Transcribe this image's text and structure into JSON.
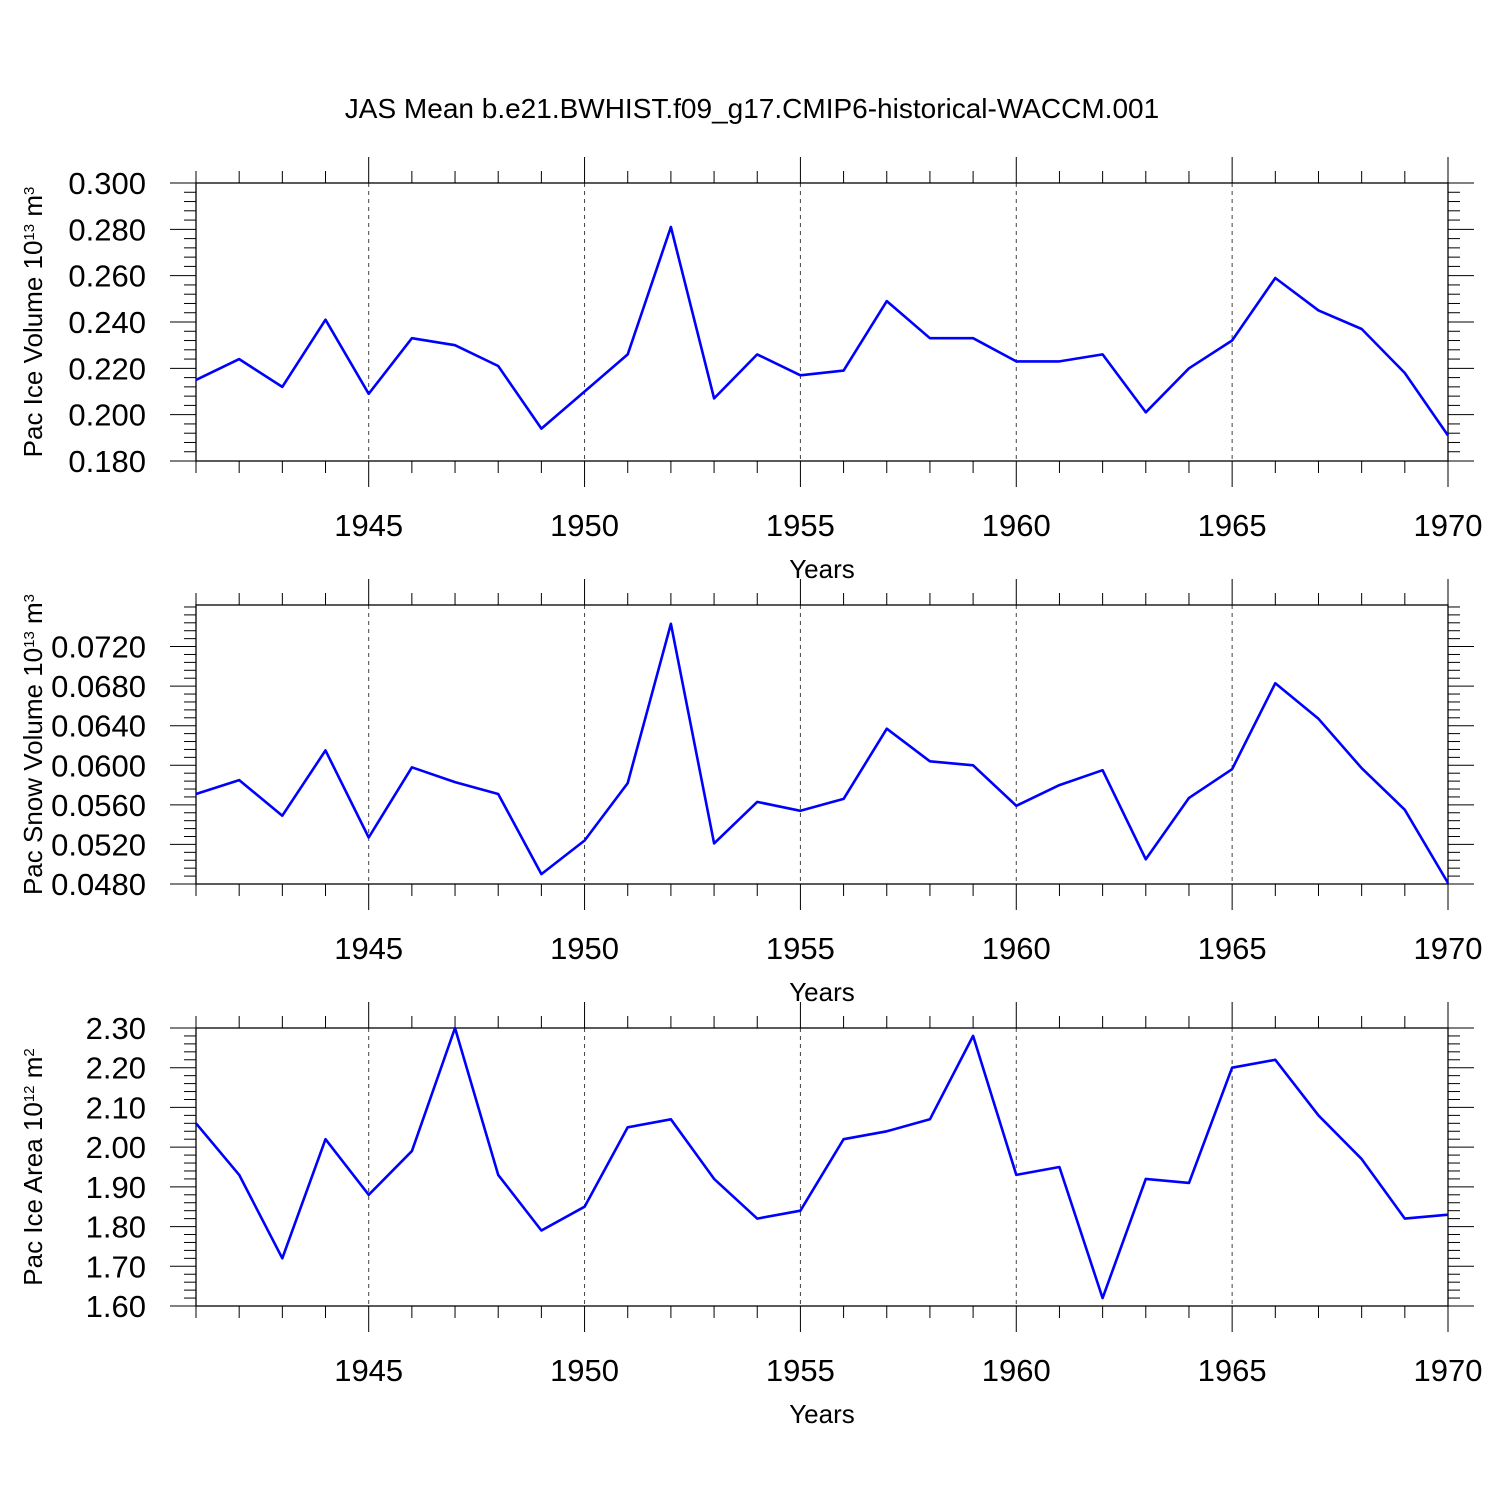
{
  "title": "JAS Mean b.e21.BWHIST.f09_g17.CMIP6-historical-WACCM.001",
  "line_color": "#0000ff",
  "chart_data": [
    {
      "type": "line",
      "xlabel": "Years",
      "ylabel": {
        "pre": "Pac Ice Volume 10",
        "exp": "13",
        "mid": " m",
        "unit_exp": "3"
      },
      "xlim": [
        1941,
        1970
      ],
      "ylim": [
        0.18,
        0.3
      ],
      "yticks": [
        0.18,
        0.2,
        0.22,
        0.24,
        0.26,
        0.28,
        0.3
      ],
      "ytick_labels": [
        "0.180",
        "0.200",
        "0.220",
        "0.240",
        "0.260",
        "0.280",
        "0.300"
      ],
      "xticks": [
        1945,
        1950,
        1955,
        1960,
        1965,
        1970
      ],
      "xtick_labels": [
        "1945",
        "1950",
        "1955",
        "1960",
        "1965",
        "1970"
      ],
      "x": [
        1941,
        1942,
        1943,
        1944,
        1945,
        1946,
        1947,
        1948,
        1949,
        1950,
        1951,
        1952,
        1953,
        1954,
        1955,
        1956,
        1957,
        1958,
        1959,
        1960,
        1961,
        1962,
        1963,
        1964,
        1965,
        1966,
        1967,
        1968,
        1969,
        1970
      ],
      "values": [
        0.215,
        0.224,
        0.212,
        0.241,
        0.209,
        0.233,
        0.23,
        0.221,
        0.194,
        0.21,
        0.226,
        0.281,
        0.207,
        0.226,
        0.217,
        0.219,
        0.249,
        0.233,
        0.233,
        0.223,
        0.223,
        0.226,
        0.201,
        0.22,
        0.232,
        0.259,
        0.245,
        0.237,
        0.218,
        0.191
      ],
      "grid": "dashed vertical lines at labeled years"
    },
    {
      "type": "line",
      "xlabel": "Years",
      "ylabel": {
        "pre": "Pac Snow Volume 10",
        "exp": "13",
        "mid": " m",
        "unit_exp": "3"
      },
      "xlim": [
        1941,
        1970
      ],
      "ylim": [
        0.048,
        0.0762
      ],
      "yticks": [
        0.048,
        0.052,
        0.056,
        0.06,
        0.064,
        0.068,
        0.072
      ],
      "ytick_labels": [
        "0.0480",
        "0.0520",
        "0.0560",
        "0.0600",
        "0.0640",
        "0.0680",
        "0.0720"
      ],
      "xticks": [
        1945,
        1950,
        1955,
        1960,
        1965,
        1970
      ],
      "xtick_labels": [
        "1945",
        "1950",
        "1955",
        "1960",
        "1965",
        "1970"
      ],
      "x": [
        1941,
        1942,
        1943,
        1944,
        1945,
        1946,
        1947,
        1948,
        1949,
        1950,
        1951,
        1952,
        1953,
        1954,
        1955,
        1956,
        1957,
        1958,
        1959,
        1960,
        1961,
        1962,
        1963,
        1964,
        1965,
        1966,
        1967,
        1968,
        1969,
        1970
      ],
      "values": [
        0.0571,
        0.0585,
        0.0549,
        0.0615,
        0.0527,
        0.0598,
        0.0583,
        0.0571,
        0.049,
        0.0524,
        0.0582,
        0.0743,
        0.0521,
        0.0563,
        0.0554,
        0.0566,
        0.0637,
        0.0604,
        0.06,
        0.0559,
        0.058,
        0.0595,
        0.0505,
        0.0567,
        0.0596,
        0.0683,
        0.0647,
        0.0597,
        0.0555,
        0.0481
      ],
      "grid": "dashed vertical lines at labeled years"
    },
    {
      "type": "line",
      "xlabel": "Years",
      "ylabel": {
        "pre": "Pac Ice Area 10",
        "exp": "12",
        "mid": " m",
        "unit_exp": "2"
      },
      "xlim": [
        1941,
        1970
      ],
      "ylim": [
        1.6,
        2.3
      ],
      "yticks": [
        1.6,
        1.7,
        1.8,
        1.9,
        2.0,
        2.1,
        2.2,
        2.3
      ],
      "ytick_labels": [
        "1.60",
        "1.70",
        "1.80",
        "1.90",
        "2.00",
        "2.10",
        "2.20",
        "2.30"
      ],
      "xticks": [
        1945,
        1950,
        1955,
        1960,
        1965,
        1970
      ],
      "xtick_labels": [
        "1945",
        "1950",
        "1955",
        "1960",
        "1965",
        "1970"
      ],
      "x": [
        1941,
        1942,
        1943,
        1944,
        1945,
        1946,
        1947,
        1948,
        1949,
        1950,
        1951,
        1952,
        1953,
        1954,
        1955,
        1956,
        1957,
        1958,
        1959,
        1960,
        1961,
        1962,
        1963,
        1964,
        1965,
        1966,
        1967,
        1968,
        1969,
        1970
      ],
      "values": [
        2.06,
        1.93,
        1.72,
        2.02,
        1.88,
        1.99,
        2.3,
        1.93,
        1.79,
        1.85,
        2.05,
        2.07,
        1.92,
        1.82,
        1.84,
        2.02,
        2.04,
        2.07,
        2.28,
        1.93,
        1.95,
        1.62,
        1.92,
        1.91,
        2.2,
        2.22,
        2.08,
        1.97,
        1.82,
        1.83
      ],
      "grid": "dashed vertical lines at labeled years"
    }
  ]
}
